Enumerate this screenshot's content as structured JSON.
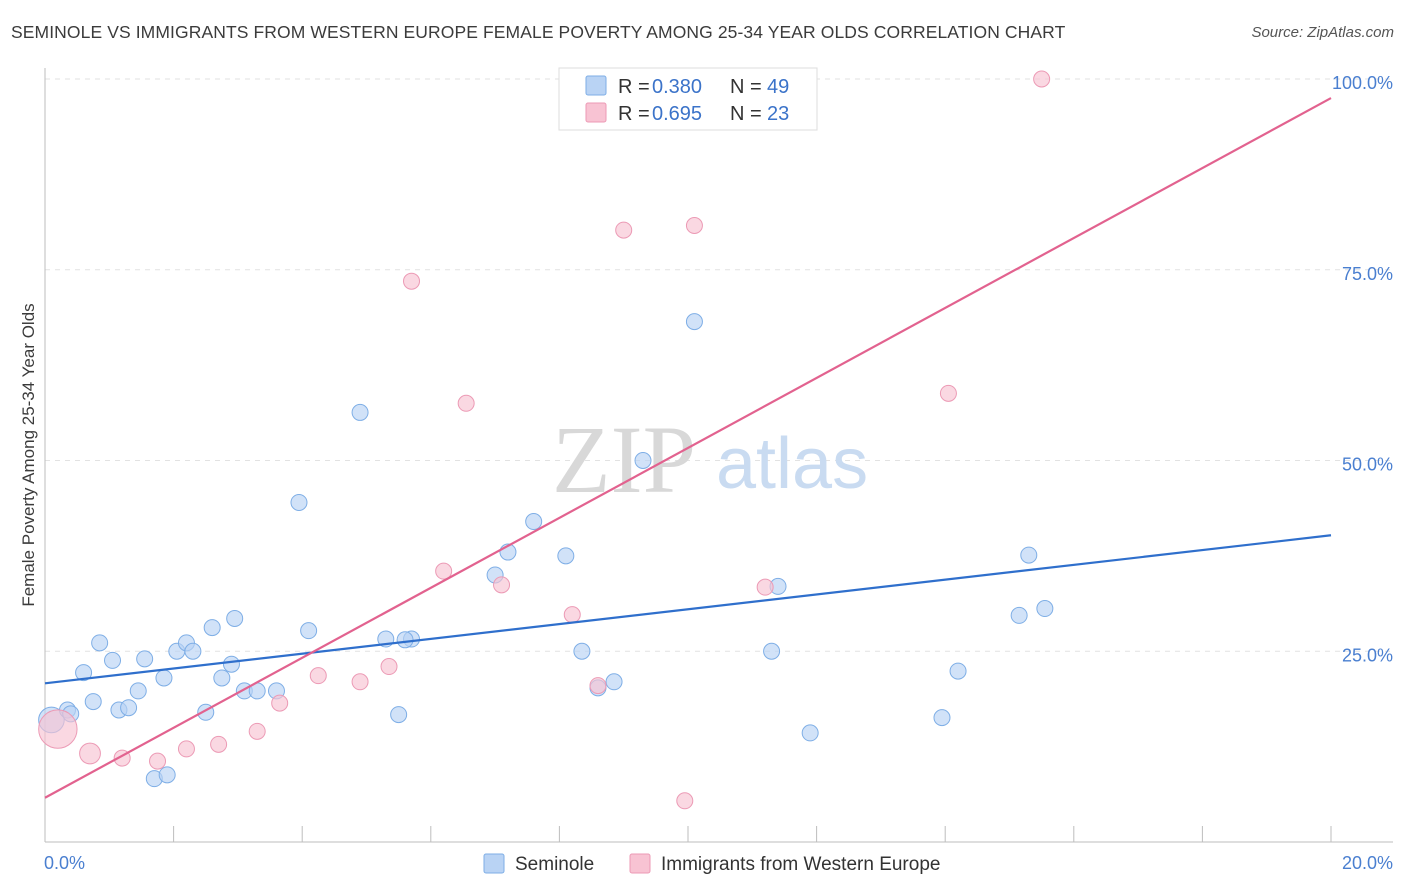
{
  "title": "SEMINOLE VS IMMIGRANTS FROM WESTERN EUROPE FEMALE POVERTY AMONG 25-34 YEAR OLDS CORRELATION CHART",
  "source": "Source: ZipAtlas.com",
  "watermark": {
    "zip": "ZIP",
    "atlas": "atlas"
  },
  "colors": {
    "seminole_fill": "#b9d3f4",
    "seminole_stroke": "#7eaee6",
    "seminole_line": "#2f6fcc",
    "immig_fill": "#f8c3d3",
    "immig_stroke": "#ec9ab5",
    "immig_line": "#e2628f"
  },
  "legend": {
    "r_label": "R =",
    "n_label": "N =",
    "series": [
      {
        "r": "0.380",
        "n": "49"
      },
      {
        "r": "0.695",
        "n": "23"
      }
    ]
  },
  "chart_data": {
    "type": "scatter",
    "title": "SEMINOLE VS IMMIGRANTS FROM WESTERN EUROPE FEMALE POVERTY AMONG 25-34 YEAR OLDS CORRELATION CHART",
    "xlabel": "",
    "ylabel": "Female Poverty Among 25-34 Year Olds",
    "xlim": [
      0,
      20
    ],
    "ylim": [
      0,
      100
    ],
    "x_tick_labels": [
      "0.0%",
      "20.0%"
    ],
    "y_tick_labels": [
      "25.0%",
      "50.0%",
      "75.0%",
      "100.0%"
    ],
    "y_ticks": [
      25,
      50,
      75,
      100
    ],
    "legend_position": "bottom-center",
    "series": [
      {
        "name": "Seminole",
        "trend": {
          "x": [
            0,
            20
          ],
          "y": [
            20.8,
            40.2
          ]
        },
        "points": [
          [
            0.1,
            16.0,
            1.6
          ],
          [
            0.35,
            17.3,
            1
          ],
          [
            0.4,
            16.8,
            1
          ],
          [
            0.6,
            22.2,
            1
          ],
          [
            0.75,
            18.4,
            1
          ],
          [
            0.85,
            26.1,
            1
          ],
          [
            1.05,
            23.8,
            1
          ],
          [
            1.15,
            17.3,
            1
          ],
          [
            1.3,
            17.6,
            1
          ],
          [
            1.45,
            19.8,
            1
          ],
          [
            1.55,
            24.0,
            1
          ],
          [
            1.7,
            8.3,
            1
          ],
          [
            1.85,
            21.5,
            1
          ],
          [
            1.9,
            8.8,
            1
          ],
          [
            2.05,
            25.0,
            1
          ],
          [
            2.2,
            26.1,
            1
          ],
          [
            2.3,
            25.0,
            1
          ],
          [
            2.5,
            17.0,
            1
          ],
          [
            2.6,
            28.1,
            1
          ],
          [
            2.75,
            21.5,
            1
          ],
          [
            2.9,
            23.3,
            1
          ],
          [
            2.95,
            29.3,
            1
          ],
          [
            3.1,
            19.8,
            1
          ],
          [
            3.3,
            19.8,
            1
          ],
          [
            3.6,
            19.8,
            1
          ],
          [
            3.95,
            44.5,
            1
          ],
          [
            4.1,
            27.7,
            1
          ],
          [
            4.9,
            56.3,
            1
          ],
          [
            5.3,
            26.6,
            1
          ],
          [
            5.5,
            16.7,
            1
          ],
          [
            5.7,
            26.6,
            1
          ],
          [
            7.0,
            35.0,
            1
          ],
          [
            7.2,
            38.0,
            1
          ],
          [
            7.6,
            42.0,
            1
          ],
          [
            8.1,
            37.5,
            1
          ],
          [
            8.35,
            25.0,
            1
          ],
          [
            8.6,
            20.2,
            1
          ],
          [
            8.85,
            21.0,
            1
          ],
          [
            9.3,
            50.0,
            1
          ],
          [
            10.1,
            68.2,
            1
          ],
          [
            11.3,
            25.0,
            1
          ],
          [
            11.4,
            33.5,
            1
          ],
          [
            11.9,
            14.3,
            1
          ],
          [
            13.95,
            16.3,
            1
          ],
          [
            14.2,
            22.4,
            1
          ],
          [
            15.15,
            29.7,
            1
          ],
          [
            15.3,
            37.6,
            1
          ],
          [
            15.55,
            30.6,
            1
          ],
          [
            5.6,
            26.5,
            1
          ]
        ]
      },
      {
        "name": "Immigrants from Western Europe",
        "trend": {
          "x": [
            0,
            20
          ],
          "y": [
            5.8,
            97.5
          ]
        },
        "points": [
          [
            0.2,
            14.8,
            2.4
          ],
          [
            0.7,
            11.6,
            1.3
          ],
          [
            1.2,
            11.0,
            1
          ],
          [
            1.75,
            10.6,
            1
          ],
          [
            2.2,
            12.2,
            1
          ],
          [
            2.7,
            12.8,
            1
          ],
          [
            3.3,
            14.5,
            1
          ],
          [
            3.65,
            18.2,
            1
          ],
          [
            4.25,
            21.8,
            1
          ],
          [
            4.9,
            21.0,
            1
          ],
          [
            5.35,
            23.0,
            1
          ],
          [
            5.7,
            73.5,
            1
          ],
          [
            6.2,
            35.5,
            1
          ],
          [
            6.55,
            57.5,
            1
          ],
          [
            7.1,
            33.7,
            1
          ],
          [
            8.2,
            29.8,
            1
          ],
          [
            8.6,
            20.5,
            1
          ],
          [
            9.0,
            80.2,
            1
          ],
          [
            9.95,
            5.4,
            1
          ],
          [
            10.1,
            80.8,
            1
          ],
          [
            11.2,
            33.4,
            1
          ],
          [
            14.05,
            58.8,
            1
          ],
          [
            15.5,
            100.0,
            1
          ]
        ]
      }
    ]
  },
  "bottom_legend": [
    "Seminole",
    "Immigrants from Western Europe"
  ]
}
